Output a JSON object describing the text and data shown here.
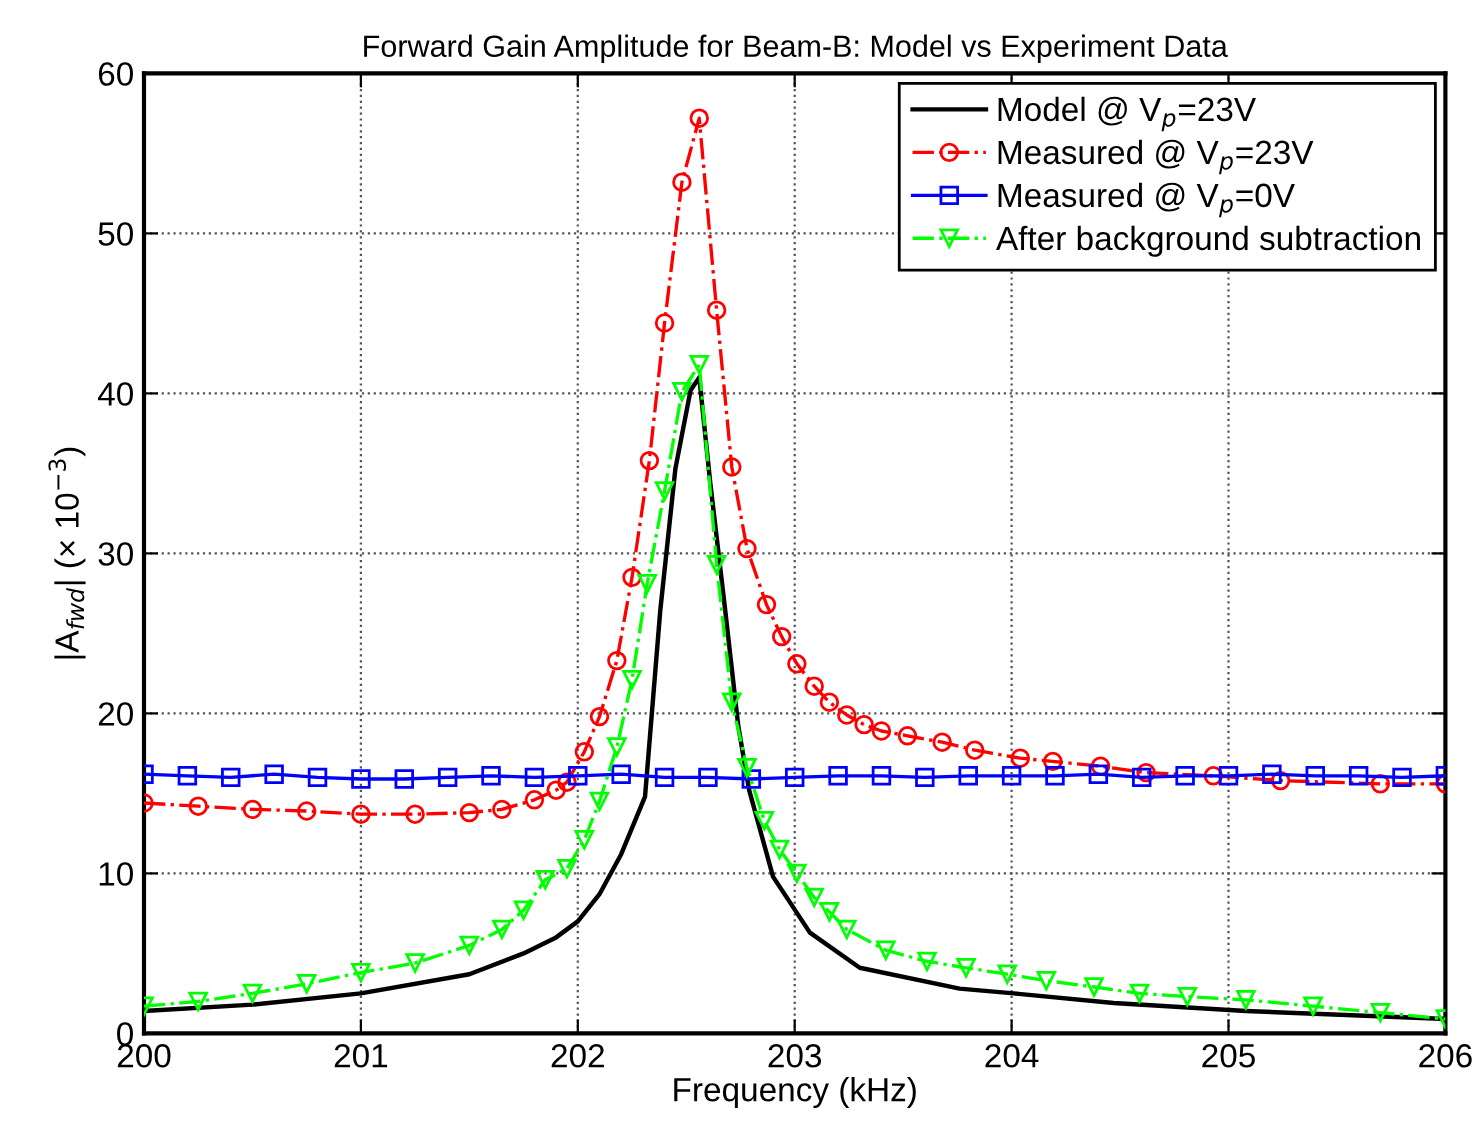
{
  "chart_data": {
    "type": "line",
    "title": "Forward Gain Amplitude for Beam-B: Model vs Experiment Data",
    "xlabel": "Frequency (kHz)",
    "ylabel": "|A$_{fwd}$| (× 10$^{−3}$)",
    "xlim": [
      200,
      206
    ],
    "ylim": [
      0,
      60
    ],
    "xticks": [
      200,
      201,
      202,
      203,
      204,
      205,
      206
    ],
    "yticks": [
      0,
      10,
      20,
      30,
      40,
      50,
      60
    ],
    "grid": true,
    "legend": "top right",
    "series": [
      {
        "name": "Model @ V$_{p}$=23V",
        "color": "#000000",
        "marker": "none",
        "line_style": "solid",
        "x": [
          200,
          200.5,
          201,
          201.5,
          201.75,
          201.9,
          202.0,
          202.1,
          202.2,
          202.31,
          202.38,
          202.45,
          202.52,
          202.56,
          202.61,
          202.68,
          202.74,
          202.79,
          202.9,
          203.07,
          203.3,
          203.76,
          204.01,
          204.47,
          205.08,
          206
        ],
        "values": [
          1.4,
          1.8,
          2.5,
          3.7,
          5.0,
          6.0,
          7.0,
          8.7,
          11.2,
          14.8,
          26.4,
          35.3,
          40.2,
          41.0,
          34.5,
          26.4,
          19.2,
          15.2,
          9.8,
          6.3,
          4.1,
          2.8,
          2.5,
          1.9,
          1.4,
          0.9
        ]
      },
      {
        "name": "Measured @ V$_{p}$=23V",
        "color": "#ff0000",
        "marker": "circle",
        "line_style": "dashdot",
        "x": [
          200,
          200.25,
          200.5,
          200.75,
          201,
          201.25,
          201.5,
          201.65,
          201.8,
          201.9,
          201.95,
          202.03,
          202.1,
          202.18,
          202.25,
          202.33,
          202.4,
          202.48,
          202.56,
          202.64,
          202.71,
          202.78,
          202.87,
          202.94,
          203.01,
          203.09,
          203.16,
          203.24,
          203.32,
          203.4,
          203.52,
          203.68,
          203.83,
          204.04,
          204.19,
          204.41,
          204.62,
          204.93,
          205.24,
          205.7,
          206
        ],
        "values": [
          14.4,
          14.2,
          14.0,
          13.9,
          13.7,
          13.7,
          13.8,
          14.0,
          14.6,
          15.2,
          15.7,
          17.6,
          19.8,
          23.3,
          28.5,
          35.8,
          44.4,
          53.2,
          57.2,
          45.2,
          35.4,
          30.3,
          26.8,
          24.8,
          23.1,
          21.7,
          20.7,
          19.9,
          19.3,
          18.9,
          18.6,
          18.2,
          17.7,
          17.2,
          17.0,
          16.7,
          16.3,
          16.1,
          15.8,
          15.6,
          15.6
        ]
      },
      {
        "name": "Measured @ V$_{p}$=0V",
        "color": "#0000ff",
        "marker": "square",
        "line_style": "solid",
        "x": [
          200,
          200.2,
          200.4,
          200.6,
          200.8,
          201,
          201.2,
          201.4,
          201.6,
          201.8,
          202,
          202.2,
          202.4,
          202.6,
          202.8,
          203,
          203.2,
          203.4,
          203.6,
          203.8,
          204,
          204.2,
          204.4,
          204.6,
          204.8,
          205,
          205.2,
          205.4,
          205.6,
          205.8,
          206
        ],
        "values": [
          16.2,
          16.1,
          16.0,
          16.2,
          16.0,
          15.9,
          15.9,
          16.0,
          16.1,
          16.0,
          16.1,
          16.2,
          16.0,
          16.0,
          15.9,
          16.0,
          16.1,
          16.1,
          16.0,
          16.1,
          16.1,
          16.1,
          16.2,
          16.0,
          16.1,
          16.1,
          16.2,
          16.1,
          16.1,
          16.0,
          16.1
        ]
      },
      {
        "name": "After background subtraction",
        "color": "#00ff00",
        "marker": "triangle",
        "line_style": "dashdot",
        "x": [
          200,
          200.25,
          200.5,
          200.75,
          201,
          201.25,
          201.5,
          201.65,
          201.75,
          201.85,
          201.95,
          202.03,
          202.1,
          202.18,
          202.25,
          202.32,
          202.4,
          202.48,
          202.56,
          202.64,
          202.71,
          202.78,
          202.86,
          202.93,
          203.01,
          203.09,
          203.16,
          203.24,
          203.42,
          203.61,
          203.79,
          203.98,
          204.16,
          204.38,
          204.59,
          204.81,
          205.08,
          205.39,
          205.7,
          206
        ],
        "values": [
          1.7,
          2.0,
          2.5,
          3.1,
          3.8,
          4.4,
          5.5,
          6.5,
          7.7,
          9.6,
          10.3,
          12.1,
          14.5,
          17.9,
          22.1,
          28.1,
          33.9,
          40.1,
          41.8,
          29.3,
          20.7,
          16.6,
          13.3,
          11.5,
          10.0,
          8.5,
          7.6,
          6.5,
          5.2,
          4.5,
          4.1,
          3.7,
          3.3,
          2.9,
          2.5,
          2.3,
          2.1,
          1.7,
          1.3,
          0.9
        ]
      }
    ]
  }
}
